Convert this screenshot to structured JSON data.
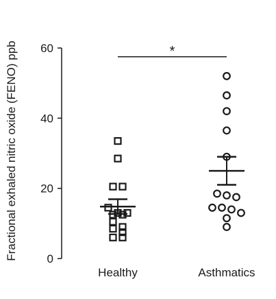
{
  "chart_data": {
    "type": "scatter",
    "title": "",
    "xlabel": "",
    "ylabel": "Fractional exhaled nitric oxide (FENO) ppb",
    "ylim": [
      0,
      60
    ],
    "yticks": [
      0,
      20,
      40,
      60
    ],
    "categories": [
      "Healthy",
      "Asthmatics"
    ],
    "series": [
      {
        "category": "Healthy",
        "marker": "square",
        "values": [
          33.5,
          28.5,
          20.5,
          20.5,
          14.5,
          13.0,
          13.0,
          12.5,
          12.5,
          10.5,
          9.0,
          8.5,
          7.5,
          6.0,
          6.0
        ],
        "mean": 14.8,
        "sem_upper": 16.9,
        "sem_lower": 12.7
      },
      {
        "category": "Asthmatics",
        "marker": "circle",
        "values": [
          52.0,
          46.5,
          42.0,
          36.5,
          29.0,
          18.5,
          18.0,
          17.5,
          14.5,
          14.5,
          14.0,
          13.0,
          11.5,
          9.0
        ],
        "mean": 25.0,
        "sem_upper": 29.0,
        "sem_lower": 21.0
      }
    ],
    "annotations": [
      {
        "type": "significance",
        "between": [
          "Healthy",
          "Asthmatics"
        ],
        "label": "*",
        "y": 57.5
      }
    ],
    "grid": false,
    "legend": "none",
    "colors": {
      "ink": "#1a1a1a",
      "background": "#ffffff"
    }
  }
}
